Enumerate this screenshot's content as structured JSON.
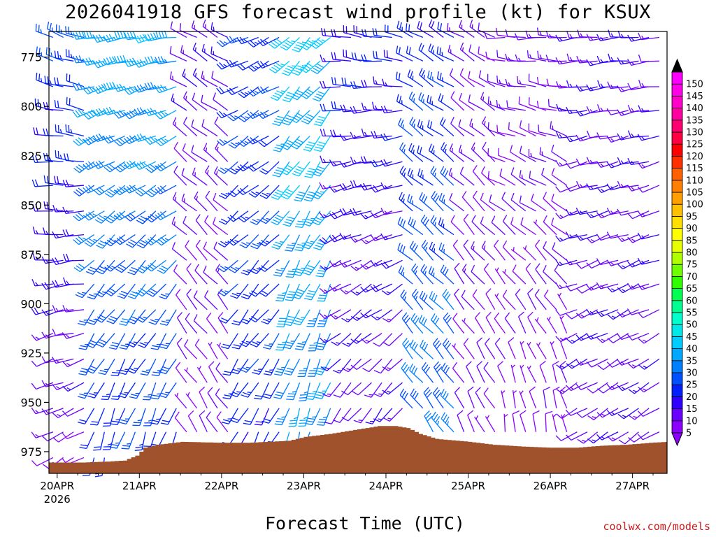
{
  "chart_data": {
    "type": "wind-barb-profile",
    "title": "2026041918 GFS forecast wind profile (kt) for KSUX",
    "xlabel": "Forecast Time (UTC)",
    "credit": "coolwx.com/models",
    "x_ticks": [
      {
        "label": "20APR",
        "sub": "2026",
        "day": 0
      },
      {
        "label": "21APR",
        "sub": "",
        "day": 1
      },
      {
        "label": "22APR",
        "sub": "",
        "day": 2
      },
      {
        "label": "23APR",
        "sub": "",
        "day": 3
      },
      {
        "label": "24APR",
        "sub": "",
        "day": 4
      },
      {
        "label": "25APR",
        "sub": "",
        "day": 5
      },
      {
        "label": "26APR",
        "sub": "",
        "day": 6
      },
      {
        "label": "27APR",
        "sub": "",
        "day": 7
      }
    ],
    "x_range_days": [
      -0.1,
      7.42
    ],
    "y_ticks": [
      775,
      800,
      825,
      850,
      875,
      900,
      925,
      950,
      975
    ],
    "y_range_hpa": [
      762,
      986
    ],
    "colorbar": {
      "values": [
        5,
        10,
        15,
        20,
        25,
        30,
        35,
        40,
        45,
        50,
        55,
        60,
        65,
        70,
        75,
        80,
        85,
        90,
        95,
        100,
        105,
        110,
        115,
        120,
        125,
        130,
        135,
        140,
        145,
        150
      ],
      "colors": [
        "#8c00ff",
        "#6a00ff",
        "#3000ff",
        "#0020ff",
        "#0050ff",
        "#0080ff",
        "#00a8ff",
        "#00ccff",
        "#00e8e8",
        "#00ffcc",
        "#00ff90",
        "#00ff50",
        "#30ff00",
        "#70ff00",
        "#b0ff00",
        "#e8ff00",
        "#ffff00",
        "#ffe000",
        "#ffc000",
        "#ffa000",
        "#ff8000",
        "#ff6000",
        "#ff3000",
        "#ff0000",
        "#ff0040",
        "#ff0070",
        "#ff00a0",
        "#ff00c8",
        "#ff00e8",
        "#ff00ff"
      ],
      "under_color": "#8c00ff",
      "over_color": "#000000"
    },
    "terrain_color": "#a0522d",
    "surface_pressure_hpa": [
      [
        -0.1,
        980.5
      ],
      [
        0.3,
        980.5
      ],
      [
        0.6,
        980
      ],
      [
        0.8,
        979.5
      ],
      [
        0.95,
        977
      ],
      [
        1.05,
        973
      ],
      [
        1.2,
        971.5
      ],
      [
        1.5,
        970
      ],
      [
        2.0,
        970.5
      ],
      [
        2.3,
        970.5
      ],
      [
        2.8,
        969.5
      ],
      [
        3.0,
        967.5
      ],
      [
        3.3,
        966
      ],
      [
        3.6,
        964
      ],
      [
        3.9,
        962
      ],
      [
        4.1,
        962
      ],
      [
        4.25,
        963
      ],
      [
        4.4,
        966
      ],
      [
        4.6,
        968.5
      ],
      [
        5.0,
        970
      ],
      [
        5.3,
        971.5
      ],
      [
        5.7,
        972.5
      ],
      [
        6.0,
        973
      ],
      [
        6.3,
        973
      ],
      [
        6.6,
        972
      ],
      [
        6.9,
        971.5
      ],
      [
        7.2,
        970.5
      ],
      [
        7.42,
        970
      ]
    ],
    "wind_levels_hpa": [
      765,
      777,
      790,
      802,
      815,
      828,
      840,
      853,
      865,
      878,
      890,
      903,
      915,
      928,
      940,
      953,
      965,
      978
    ],
    "time_step_hours": 3,
    "wind_regimes": [
      {
        "t0": -0.1,
        "t1": 0.45,
        "dir_top": 290,
        "dir_low": 240,
        "spd_top": 25,
        "spd_low": 10
      },
      {
        "t0": 0.45,
        "t1": 1.5,
        "dir_top": 260,
        "dir_low": 195,
        "spd_top": 38,
        "spd_low": 22
      },
      {
        "t0": 1.5,
        "t1": 2.15,
        "dir_top": 300,
        "dir_low": 330,
        "spd_top": 14,
        "spd_low": 8
      },
      {
        "t0": 2.15,
        "t1": 2.8,
        "dir_top": 245,
        "dir_low": 205,
        "spd_top": 25,
        "spd_low": 22
      },
      {
        "t0": 2.8,
        "t1": 3.45,
        "dir_top": 225,
        "dir_low": 195,
        "spd_top": 42,
        "spd_low": 32
      },
      {
        "t0": 3.45,
        "t1": 4.3,
        "dir_top": 280,
        "dir_low": 210,
        "spd_top": 20,
        "spd_low": 12
      },
      {
        "t0": 4.3,
        "t1": 4.95,
        "dir_top": 300,
        "dir_low": 325,
        "spd_top": 22,
        "spd_low": 32
      },
      {
        "t0": 4.95,
        "t1": 5.45,
        "dir_top": 300,
        "dir_low": 335,
        "spd_top": 12,
        "spd_low": 9
      },
      {
        "t0": 5.45,
        "t1": 6.25,
        "dir_top": 270,
        "dir_low": 355,
        "spd_top": 12,
        "spd_low": 7
      },
      {
        "t0": 6.25,
        "t1": 7.42,
        "dir_top": 265,
        "dir_low": 235,
        "spd_top": 15,
        "spd_low": 13
      }
    ]
  }
}
